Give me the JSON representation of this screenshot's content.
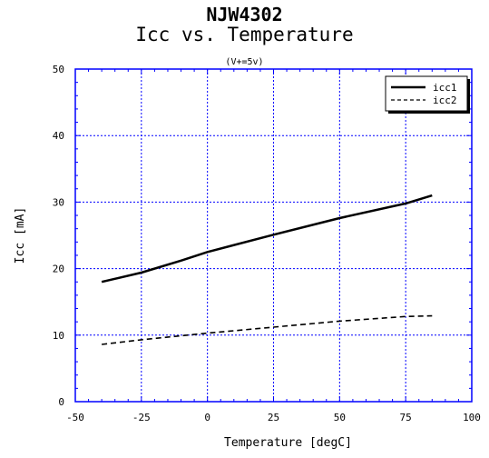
{
  "chart_data": {
    "type": "line",
    "title": "NJW4302",
    "subtitle": "Icc vs. Temperature",
    "condition": "(V+=5v)",
    "xlabel": "Temperature [degC]",
    "ylabel": "Icc [mA]",
    "xlim": [
      -50,
      100
    ],
    "ylim": [
      0,
      50
    ],
    "xticks": [
      -50,
      -25,
      0,
      25,
      50,
      75,
      100
    ],
    "yticks": [
      0,
      10,
      20,
      30,
      40,
      50
    ],
    "grid": true,
    "legend_position": "top-right",
    "series": [
      {
        "name": "icc1",
        "style": "solid",
        "x": [
          -40,
          -25,
          -10,
          0,
          25,
          50,
          75,
          85
        ],
        "y": [
          18.0,
          19.4,
          21.2,
          22.5,
          25.1,
          27.6,
          29.8,
          31.0
        ]
      },
      {
        "name": "icc2",
        "style": "dashed",
        "x": [
          -40,
          -25,
          0,
          25,
          50,
          75,
          85
        ],
        "y": [
          8.6,
          9.3,
          10.3,
          11.2,
          12.1,
          12.8,
          12.9
        ]
      }
    ]
  }
}
